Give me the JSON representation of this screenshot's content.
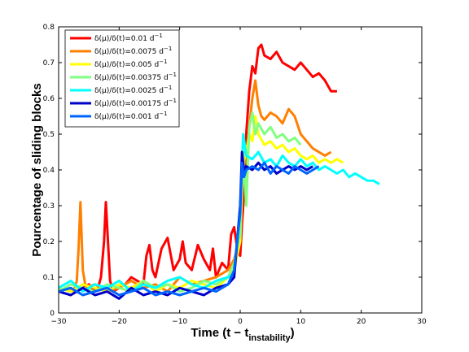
{
  "chart_data": {
    "type": "line",
    "xlabel_main": "Time (t − t",
    "xlabel_sub": "instability",
    "xlabel_close": ")",
    "ylabel": "Pourcentage of sliding blocks",
    "xlim": [
      -30,
      30
    ],
    "ylim": [
      0,
      0.8
    ],
    "xticks": [
      "−30",
      "−20",
      "−10",
      "0",
      "10",
      "20",
      "30"
    ],
    "xtick_values": [
      -30,
      -20,
      -10,
      0,
      10,
      20,
      30
    ],
    "yticks": [
      "0",
      "0.1",
      "0.2",
      "0.3",
      "0.4",
      "0.5",
      "0.6",
      "0.7",
      "0.8"
    ],
    "ytick_values": [
      0,
      0.1,
      0.2,
      0.3,
      0.4,
      0.5,
      0.6,
      0.7,
      0.8
    ],
    "grid": false,
    "legend_placement": "top-left",
    "series": [
      {
        "name": "δ(μ)/δ(t)=0.01 d",
        "sup": "−1",
        "color": "#ff0000",
        "x": [
          -26,
          -25,
          -24,
          -23.5,
          -23,
          -22.5,
          -22.2,
          -21.5,
          -21,
          -20,
          -19,
          -18,
          -17,
          -16,
          -15.5,
          -15,
          -14.5,
          -14,
          -13,
          -12,
          -11,
          -10,
          -9.5,
          -9,
          -8,
          -7,
          -6,
          -5,
          -4.5,
          -4,
          -3,
          -2,
          -1.5,
          -1,
          -0.5,
          0,
          0.3,
          0.7,
          1,
          1.5,
          2,
          2.5,
          3,
          3.5,
          4,
          5,
          6,
          7,
          8,
          9,
          10,
          11,
          12,
          13,
          14,
          15,
          16
        ],
        "y": [
          0.07,
          0.08,
          0.06,
          0.07,
          0.1,
          0.2,
          0.31,
          0.09,
          0.06,
          0.07,
          0.08,
          0.1,
          0.09,
          0.08,
          0.16,
          0.19,
          0.12,
          0.1,
          0.18,
          0.21,
          0.12,
          0.15,
          0.2,
          0.14,
          0.12,
          0.19,
          0.15,
          0.12,
          0.18,
          0.1,
          0.14,
          0.12,
          0.22,
          0.24,
          0.18,
          0.16,
          0.25,
          0.35,
          0.5,
          0.62,
          0.69,
          0.67,
          0.74,
          0.75,
          0.72,
          0.71,
          0.73,
          0.7,
          0.69,
          0.68,
          0.7,
          0.68,
          0.66,
          0.67,
          0.65,
          0.62,
          0.62
        ]
      },
      {
        "name": "δ(μ)/δ(t)=0.0075 d",
        "sup": "−1",
        "color": "#ff8000",
        "x": [
          -30,
          -28.5,
          -27.5,
          -27,
          -26.7,
          -26.4,
          -26,
          -25.5,
          -24,
          -22,
          -20,
          -18,
          -16,
          -14,
          -12,
          -10,
          -8,
          -6,
          -4,
          -2,
          -1,
          -0.5,
          0,
          0.3,
          0.6,
          1,
          1.5,
          2,
          2.5,
          3,
          3.5,
          4,
          5,
          6,
          7,
          8,
          9,
          10,
          11,
          12,
          13,
          14,
          15
        ],
        "y": [
          0.06,
          0.07,
          0.06,
          0.09,
          0.18,
          0.31,
          0.12,
          0.07,
          0.08,
          0.06,
          0.07,
          0.09,
          0.07,
          0.08,
          0.06,
          0.1,
          0.08,
          0.09,
          0.1,
          0.12,
          0.15,
          0.18,
          0.22,
          0.4,
          0.45,
          0.42,
          0.52,
          0.6,
          0.65,
          0.58,
          0.55,
          0.54,
          0.56,
          0.55,
          0.53,
          0.57,
          0.55,
          0.5,
          0.48,
          0.46,
          0.45,
          0.44,
          0.45
        ]
      },
      {
        "name": "δ(μ)/δ(t)=0.005 d",
        "sup": "−1",
        "color": "#ffff00",
        "x": [
          -30,
          -28,
          -26,
          -24,
          -22,
          -20,
          -18,
          -16,
          -14,
          -12,
          -10,
          -8,
          -6,
          -4,
          -2,
          -1,
          0,
          0.5,
          1,
          1.5,
          2,
          2.5,
          3,
          4,
          5,
          6,
          7,
          8,
          9,
          10,
          11,
          12,
          13,
          14,
          15,
          16,
          17
        ],
        "y": [
          0.07,
          0.06,
          0.08,
          0.07,
          0.06,
          0.08,
          0.07,
          0.09,
          0.06,
          0.08,
          0.07,
          0.09,
          0.08,
          0.07,
          0.1,
          0.12,
          0.2,
          0.42,
          0.45,
          0.5,
          0.48,
          0.55,
          0.5,
          0.47,
          0.48,
          0.46,
          0.47,
          0.45,
          0.46,
          0.44,
          0.43,
          0.44,
          0.42,
          0.43,
          0.42,
          0.43,
          0.42
        ]
      },
      {
        "name": "δ(μ)/δ(t)=0.00375 d",
        "sup": "−1",
        "color": "#80ff80",
        "x": [
          -30,
          -28,
          -26,
          -24,
          -22,
          -20,
          -18,
          -16,
          -14,
          -12,
          -10,
          -8,
          -6,
          -4,
          -2,
          -1,
          0,
          0.5,
          1,
          1.5,
          2,
          2.5,
          3,
          4,
          5,
          6,
          7,
          8,
          9,
          10
        ],
        "y": [
          0.06,
          0.08,
          0.07,
          0.06,
          0.08,
          0.07,
          0.06,
          0.09,
          0.07,
          0.08,
          0.06,
          0.07,
          0.09,
          0.08,
          0.1,
          0.14,
          0.22,
          0.45,
          0.3,
          0.52,
          0.56,
          0.5,
          0.53,
          0.5,
          0.52,
          0.49,
          0.5,
          0.48,
          0.49,
          0.47
        ]
      },
      {
        "name": "δ(μ)/δ(t)=0.0025 d",
        "sup": "−1",
        "color": "#00ffff",
        "x": [
          -30,
          -28,
          -26,
          -24,
          -22,
          -20,
          -18,
          -16,
          -14,
          -12,
          -10,
          -8,
          -6,
          -4,
          -2,
          -1,
          0,
          0.5,
          1,
          2,
          3,
          4,
          5,
          6,
          7,
          8,
          9,
          10,
          11,
          12,
          13,
          14,
          15,
          16,
          17,
          18,
          19,
          20,
          21,
          22,
          23
        ],
        "y": [
          0.07,
          0.09,
          0.06,
          0.08,
          0.07,
          0.09,
          0.06,
          0.08,
          0.07,
          0.09,
          0.1,
          0.08,
          0.07,
          0.09,
          0.1,
          0.11,
          0.3,
          0.5,
          0.44,
          0.43,
          0.45,
          0.42,
          0.43,
          0.41,
          0.44,
          0.42,
          0.41,
          0.43,
          0.41,
          0.42,
          0.4,
          0.41,
          0.4,
          0.39,
          0.4,
          0.38,
          0.39,
          0.38,
          0.37,
          0.37,
          0.36
        ]
      },
      {
        "name": "δ(μ)/δ(t)=0.00175 d",
        "sup": "−1",
        "color": "#0000c8",
        "x": [
          -30,
          -28,
          -26,
          -24,
          -22,
          -20,
          -18,
          -16,
          -14,
          -12,
          -10,
          -8,
          -6,
          -4,
          -2,
          -1,
          0,
          0.3,
          0.6,
          1,
          2,
          3,
          4,
          5,
          6,
          7,
          8,
          9,
          10,
          11,
          12
        ],
        "y": [
          0.06,
          0.05,
          0.07,
          0.05,
          0.06,
          0.04,
          0.07,
          0.05,
          0.06,
          0.05,
          0.07,
          0.06,
          0.05,
          0.07,
          0.08,
          0.1,
          0.3,
          0.45,
          0.4,
          0.41,
          0.4,
          0.42,
          0.4,
          0.41,
          0.39,
          0.4,
          0.41,
          0.4,
          0.41,
          0.4,
          0.41
        ]
      },
      {
        "name": "δ(μ)/δ(t)=0.001 d",
        "sup": "−1",
        "color": "#0064ff",
        "x": [
          -30,
          -28,
          -26,
          -24,
          -22,
          -20,
          -18,
          -16,
          -14,
          -12,
          -10,
          -8,
          -6,
          -4,
          -2,
          -1,
          0,
          0.3,
          0.6,
          1,
          2,
          3,
          4,
          5,
          6,
          7,
          8,
          9,
          10,
          11,
          12,
          13
        ],
        "y": [
          0.06,
          0.07,
          0.05,
          0.06,
          0.07,
          0.05,
          0.06,
          0.07,
          0.05,
          0.06,
          0.05,
          0.06,
          0.07,
          0.06,
          0.08,
          0.12,
          0.28,
          0.42,
          0.38,
          0.4,
          0.41,
          0.4,
          0.42,
          0.39,
          0.41,
          0.4,
          0.39,
          0.41,
          0.4,
          0.39,
          0.4,
          0.41
        ]
      }
    ]
  }
}
